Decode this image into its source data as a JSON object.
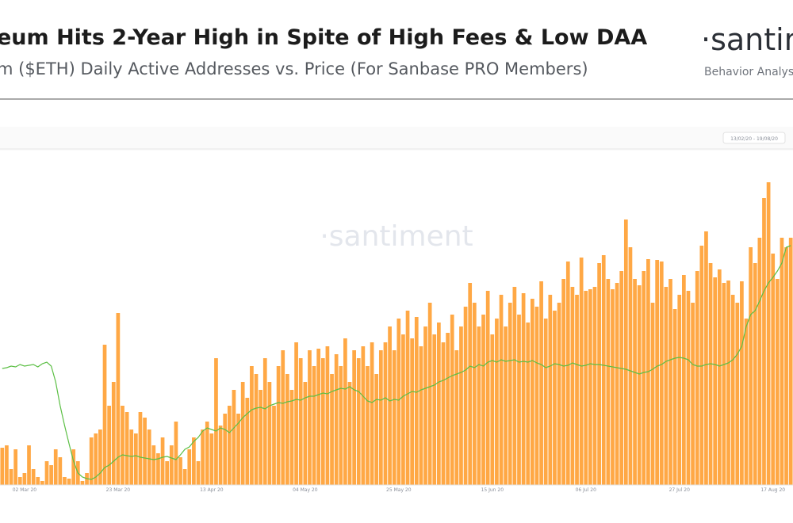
{
  "header": {
    "title": "eum Hits 2-Year High in Spite of High Fees & Low DAA",
    "subtitle": "m ($ETH) Daily Active Addresses vs. Price (For Sanbase PRO Members)",
    "logo": "·santim",
    "tagline": "Behavior Analysis"
  },
  "toolbar": {
    "date_range": "13/02/20 - 19/08/20"
  },
  "chart_data": {
    "type": "bar",
    "watermark": "·santiment",
    "categories": [
      null,
      null,
      null,
      null,
      null,
      "02 Mar 20",
      null,
      null,
      null,
      null,
      null,
      null,
      null,
      null,
      null,
      null,
      null,
      null,
      null,
      null,
      null,
      null,
      null,
      null,
      null,
      null,
      "23 Mar 20",
      null,
      null,
      null,
      null,
      null,
      null,
      null,
      null,
      null,
      null,
      null,
      null,
      null,
      null,
      null,
      null,
      null,
      null,
      null,
      null,
      "13 Apr 20",
      null,
      null,
      null,
      null,
      null,
      null,
      null,
      null,
      null,
      null,
      null,
      null,
      null,
      null,
      null,
      null,
      null,
      null,
      null,
      null,
      "04 May 20",
      null,
      null,
      null,
      null,
      null,
      null,
      null,
      null,
      null,
      null,
      null,
      null,
      null,
      null,
      null,
      null,
      null,
      null,
      null,
      null,
      "25 May 20",
      null,
      null,
      null,
      null,
      null,
      null,
      null,
      null,
      null,
      null,
      null,
      null,
      null,
      null,
      null,
      null,
      null,
      null,
      null,
      null,
      "15 Jun 20",
      null,
      null,
      null,
      null,
      null,
      null,
      null,
      null,
      null,
      null,
      null,
      null,
      null,
      null,
      null,
      null,
      null,
      null,
      null,
      null,
      "06 Jul 20",
      null,
      null,
      null,
      null,
      null,
      null,
      null,
      null,
      null,
      null,
      null,
      null,
      null,
      null,
      null,
      null,
      null,
      null,
      null,
      null,
      "27 Jul 20",
      null,
      null,
      null,
      null,
      null,
      null,
      null,
      null,
      null,
      null,
      null,
      null,
      null,
      null,
      null,
      null,
      null,
      null,
      null,
      null,
      "17 Aug 20",
      null,
      null,
      null,
      null
    ],
    "series": [
      {
        "color": "#ffa845",
        "values": [
          47,
          50,
          20,
          45,
          10,
          15,
          50,
          20,
          10,
          5,
          30,
          25,
          45,
          35,
          10,
          8,
          45,
          30,
          5,
          15,
          60,
          65,
          70,
          177,
          100,
          130,
          217,
          100,
          92,
          70,
          65,
          92,
          85,
          70,
          50,
          40,
          60,
          30,
          50,
          80,
          35,
          20,
          45,
          60,
          30,
          70,
          80,
          65,
          160,
          75,
          90,
          100,
          120,
          90,
          130,
          110,
          150,
          140,
          120,
          160,
          130,
          100,
          150,
          170,
          140,
          120,
          180,
          160,
          130,
          170,
          150,
          172,
          160,
          175,
          140,
          165,
          150,
          185,
          130,
          170,
          160,
          175,
          150,
          180,
          140,
          170,
          180,
          200,
          170,
          210,
          190,
          220,
          185,
          212,
          175,
          200,
          230,
          190,
          205,
          180,
          192,
          215,
          170,
          200,
          225,
          255,
          230,
          200,
          215,
          245,
          190,
          210,
          240,
          200,
          230,
          250,
          215,
          242,
          205,
          235,
          225,
          257,
          210,
          240,
          220,
          230,
          260,
          282,
          250,
          240,
          287,
          245,
          247,
          250,
          280,
          290,
          260,
          247,
          255,
          270,
          335,
          300,
          260,
          252,
          270,
          285,
          230,
          284,
          282,
          250,
          260,
          222,
          240,
          265,
          245,
          230,
          270,
          302,
          320,
          280,
          262,
          272,
          255,
          258,
          240,
          230,
          257,
          210,
          300,
          280,
          312,
          362,
          382,
          292,
          260,
          312,
          300,
          312
        ]
      },
      {
        "type": "line",
        "axis": "y2",
        "color": "#5cbf45",
        "values": [
          147,
          148,
          150,
          149,
          152,
          150,
          151,
          152,
          149,
          153,
          155,
          150,
          130,
          100,
          75,
          52,
          30,
          15,
          10,
          8,
          7,
          10,
          15,
          22,
          25,
          30,
          35,
          38,
          37,
          36,
          37,
          35,
          34,
          33,
          32,
          33,
          35,
          36,
          34,
          32,
          38,
          45,
          48,
          55,
          60,
          68,
          72,
          70,
          68,
          72,
          70,
          66,
          72,
          78,
          85,
          90,
          95,
          97,
          98,
          96,
          100,
          102,
          104,
          103,
          105,
          106,
          108,
          107,
          110,
          112,
          112,
          114,
          116,
          115,
          118,
          120,
          122,
          121,
          124,
          120,
          118,
          112,
          106,
          104,
          108,
          107,
          110,
          106,
          108,
          107,
          112,
          115,
          118,
          117,
          120,
          122,
          124,
          126,
          130,
          132,
          135,
          138,
          140,
          142,
          145,
          150,
          148,
          152,
          150,
          155,
          157,
          155,
          158,
          156,
          157,
          158,
          155,
          156,
          155,
          157,
          154,
          152,
          148,
          150,
          153,
          152,
          150,
          151,
          154,
          152,
          150,
          151,
          153,
          152,
          152,
          151,
          150,
          149,
          148,
          147,
          146,
          144,
          142,
          140,
          142,
          143,
          146,
          150,
          152,
          156,
          158,
          160,
          161,
          160,
          158,
          152,
          150,
          150,
          152,
          153,
          152,
          150,
          152,
          154,
          158,
          165,
          175,
          200,
          215,
          220,
          232,
          245,
          255,
          262,
          270,
          280,
          300,
          302
        ]
      }
    ],
    "ylim": [
      0,
      420
    ],
    "y2lim": [
      0,
      420
    ]
  }
}
